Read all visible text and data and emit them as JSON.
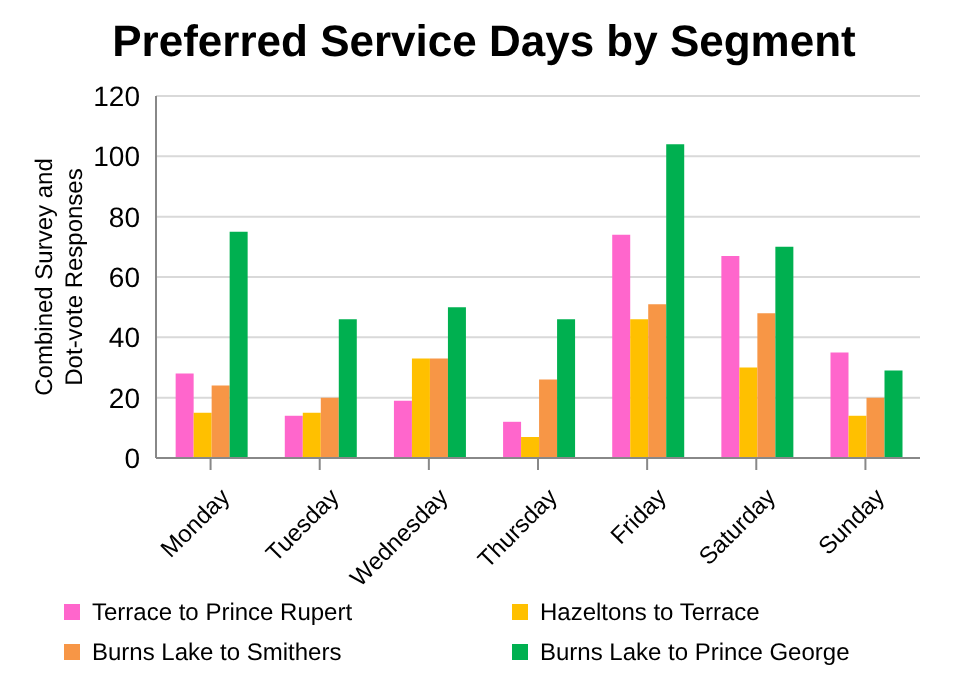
{
  "chart_data": {
    "type": "bar",
    "title": "Preferred Service Days by Segment",
    "ylabel": "Combined Survey and Dot-vote Responses",
    "categories": [
      "Monday",
      "Tuesday",
      "Wednesday",
      "Thursday",
      "Friday",
      "Saturday",
      "Sunday"
    ],
    "series": [
      {
        "name": "Terrace to Prince Rupert",
        "color": "#ff66cc",
        "values": [
          28,
          14,
          19,
          12,
          74,
          67,
          35
        ]
      },
      {
        "name": "Hazeltons to Terrace",
        "color": "#ffc000",
        "values": [
          15,
          15,
          33,
          7,
          46,
          30,
          14
        ]
      },
      {
        "name": "Burns Lake to Smithers",
        "color": "#f79646",
        "values": [
          24,
          20,
          33,
          26,
          51,
          48,
          20
        ]
      },
      {
        "name": "Burns Lake to Prince George",
        "color": "#00b050",
        "values": [
          75,
          46,
          50,
          46,
          104,
          70,
          29
        ]
      }
    ],
    "ylim": [
      0,
      120
    ],
    "yticks": [
      0,
      20,
      40,
      60,
      80,
      100,
      120
    ],
    "grid": "y",
    "legend": "bottom"
  }
}
